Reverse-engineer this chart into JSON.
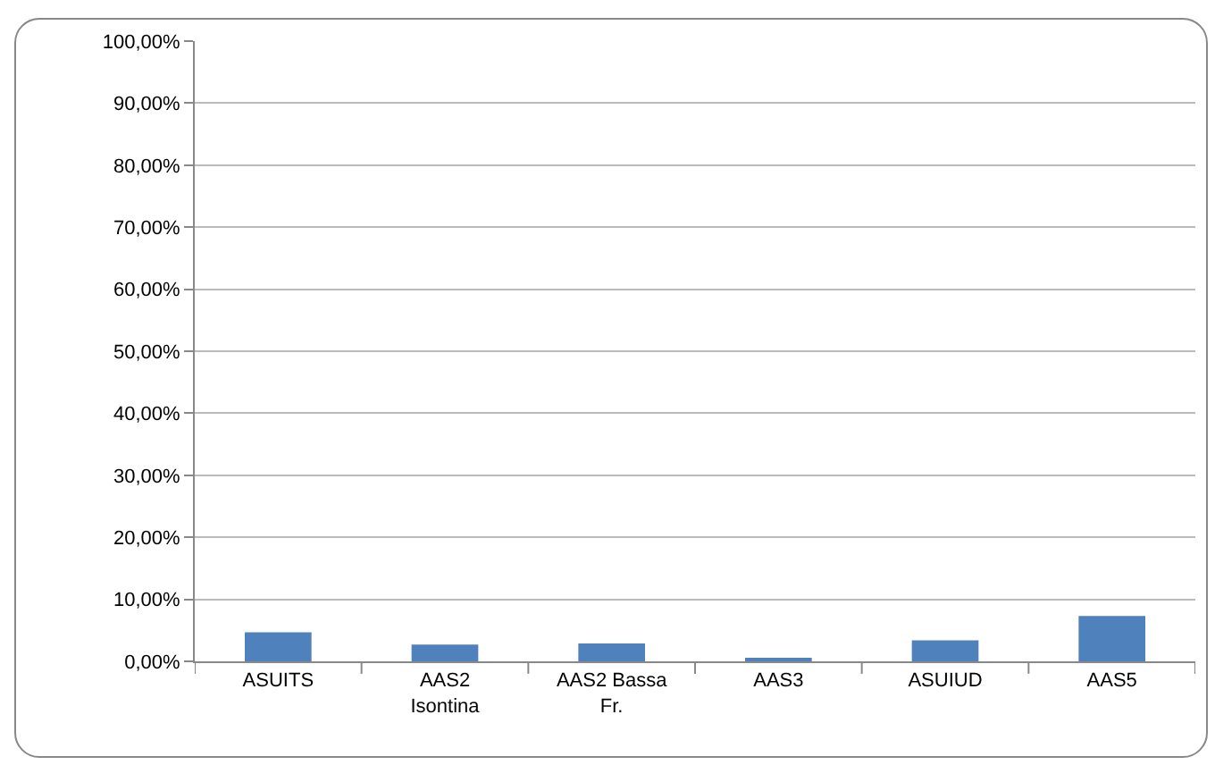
{
  "chart_data": {
    "type": "bar",
    "categories": [
      "ASUITS",
      "AAS2 Isontina",
      "AAS2 Bassa Fr.",
      "AAS3",
      "ASUIUD",
      "AAS5"
    ],
    "values": [
      4.7,
      2.7,
      2.9,
      0.4,
      3.4,
      7.3
    ],
    "color": "#4f81bd",
    "ylim": [
      0,
      100
    ],
    "yticks": [
      {
        "value": 0,
        "label": "0,00%"
      },
      {
        "value": 10,
        "label": "10,00%"
      },
      {
        "value": 20,
        "label": "20,00%"
      },
      {
        "value": 30,
        "label": "30,00%"
      },
      {
        "value": 40,
        "label": "40,00%"
      },
      {
        "value": 50,
        "label": "50,00%"
      },
      {
        "value": 60,
        "label": "60,00%"
      },
      {
        "value": 70,
        "label": "70,00%"
      },
      {
        "value": 80,
        "label": "80,00%"
      },
      {
        "value": 90,
        "label": "90,00%"
      },
      {
        "value": 100,
        "label": "100,00%"
      }
    ],
    "grid": "y"
  }
}
